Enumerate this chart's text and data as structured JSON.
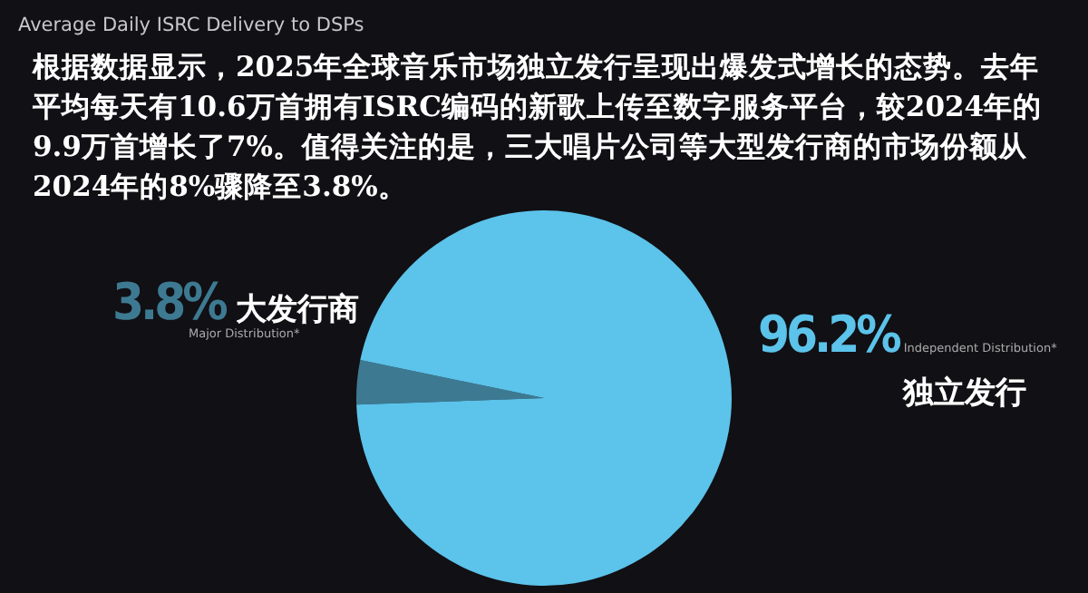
{
  "chart_data": {
    "type": "pie",
    "title": "Average Daily ISRC Delivery to DSPs",
    "subtitle": "根据数据显示，2025年全球音乐市场独立发行呈现出爆发式增长的态势。去年平均每天有10.6万首拥有ISRC编码的新歌上传至数字服务平台，较2024年的9.9万首增长了7%。值得关注的是，三大唱片公司等大型发行商的市场份额从2024年的8%骤降至3.8%。",
    "categories": [
      "Major Distribution*",
      "Independent Distribution*"
    ],
    "values": [
      3.8,
      96.2
    ],
    "colors": [
      "#3d7a92",
      "#5cc3ea"
    ],
    "value_labels": [
      "3.8%",
      "96.2%"
    ],
    "annotations": [
      "大发行商",
      "独立发行"
    ],
    "legend": false
  }
}
